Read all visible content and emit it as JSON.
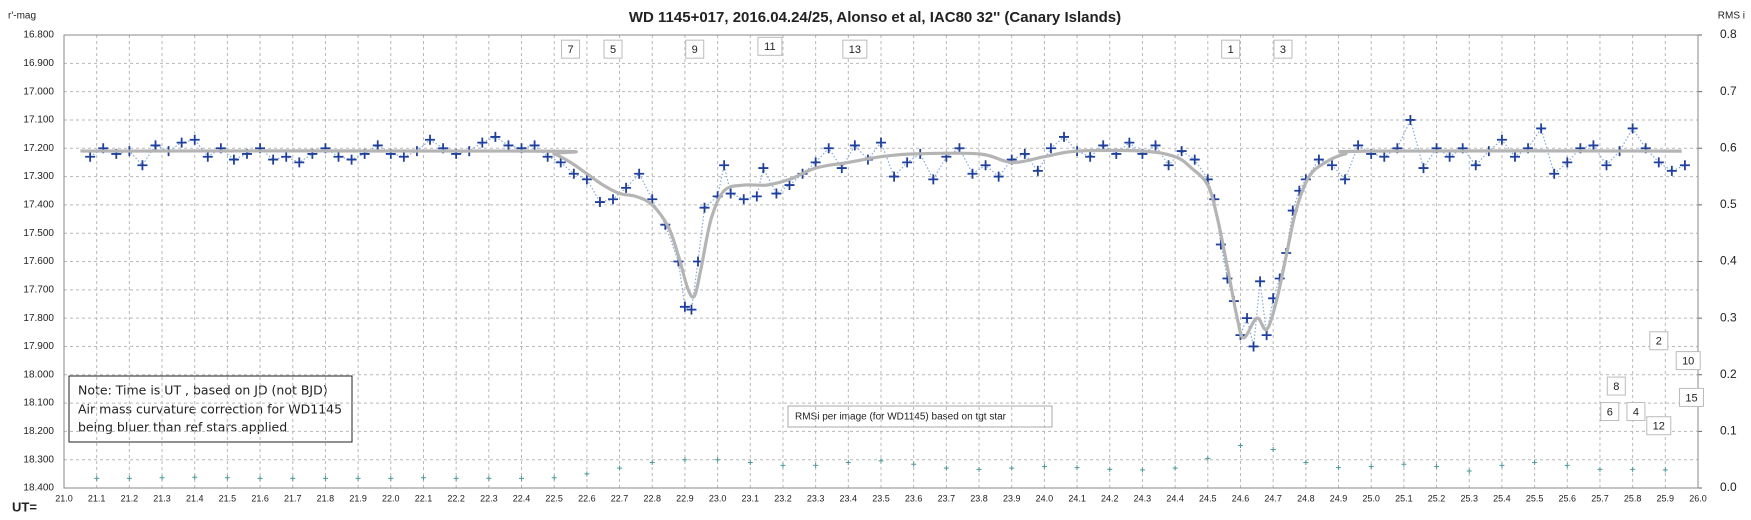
{
  "chart_data": {
    "type": "line",
    "title": "WD 1145+017,  2016.04.24/25,  Alonso  et al,  IAC80  32'' (Canary Islands)",
    "y_label": "r'-mag",
    "y2_label": "RMS i",
    "x_label": "UT=",
    "xlim": [
      21.0,
      26.0
    ],
    "xticks": [
      {
        "value": 21,
        "label": "21.0"
      },
      21.1,
      21.2,
      21.3,
      21.4,
      21.5,
      21.6,
      21.7,
      21.8,
      21.9,
      {
        "value": 22,
        "label": "22.0"
      },
      22.1,
      22.2,
      22.3,
      22.4,
      22.5,
      22.6,
      22.7,
      22.8,
      22.9,
      {
        "value": 23,
        "label": "23.0"
      },
      23.1,
      23.2,
      23.3,
      23.4,
      23.5,
      23.6,
      23.7,
      23.8,
      23.9,
      {
        "value": 24,
        "label": "24.0"
      },
      24.1,
      24.2,
      24.3,
      24.4,
      24.5,
      24.6,
      24.7,
      24.8,
      24.9,
      {
        "value": 25,
        "label": "25.0"
      },
      25.1,
      25.2,
      25.3,
      25.4,
      25.5,
      25.6,
      25.7,
      25.8,
      25.9,
      {
        "value": 26,
        "label": "26.0"
      }
    ],
    "ylim": [
      16.8,
      18.4
    ],
    "y_inverted": true,
    "yticks": [
      {
        "value": 16.8,
        "label": "16.800"
      },
      {
        "value": 16.9,
        "label": "16.900"
      },
      {
        "value": 17.0,
        "label": "17.000"
      },
      {
        "value": 17.1,
        "label": "17.100"
      },
      {
        "value": 17.2,
        "label": "17.200"
      },
      {
        "value": 17.3,
        "label": "17.300"
      },
      {
        "value": 17.4,
        "label": "17.400"
      },
      {
        "value": 17.5,
        "label": "17.500"
      },
      {
        "value": 17.6,
        "label": "17.600"
      },
      {
        "value": 17.7,
        "label": "17.700"
      },
      {
        "value": 17.8,
        "label": "17.800"
      },
      {
        "value": 17.9,
        "label": "17.900"
      },
      {
        "value": 18.0,
        "label": "18.000"
      },
      {
        "value": 18.1,
        "label": "18.100"
      },
      {
        "value": 18.2,
        "label": "18.200"
      },
      {
        "value": 18.3,
        "label": "18.300"
      },
      {
        "value": 18.4,
        "label": "18.400"
      }
    ],
    "y2lim": [
      0,
      0.8
    ],
    "y2ticks": [
      {
        "value": 0,
        "label": "0.0"
      },
      0.1,
      0.2,
      0.3,
      0.4,
      0.5,
      0.6,
      0.7,
      0.8
    ],
    "grid": true,
    "series": [
      {
        "color": "#1f3f9c",
        "marker": "plus",
        "line": "dotted",
        "line_color": "#86a9d8",
        "x": [
          21.08,
          21.12,
          21.16,
          21.2,
          21.24,
          21.28,
          21.32,
          21.36,
          21.4,
          21.44,
          21.48,
          21.52,
          21.56,
          21.6,
          21.64,
          21.68,
          21.72,
          21.76,
          21.8,
          21.84,
          21.88,
          21.92,
          21.96,
          22,
          22.04,
          22.08,
          22.12,
          22.16,
          22.2,
          22.24,
          22.28,
          22.32,
          22.36,
          22.4,
          22.44,
          22.48,
          22.52,
          22.56,
          22.6,
          22.64,
          22.68,
          22.72,
          22.76,
          22.8,
          22.84,
          22.88,
          22.9,
          22.92,
          22.94,
          22.96,
          23,
          23.02,
          23.04,
          23.08,
          23.12,
          23.14,
          23.18,
          23.22,
          23.26,
          23.3,
          23.34,
          23.38,
          23.42,
          23.46,
          23.5,
          23.54,
          23.58,
          23.62,
          23.66,
          23.7,
          23.74,
          23.78,
          23.82,
          23.86,
          23.9,
          23.94,
          23.98,
          24.02,
          24.06,
          24.1,
          24.14,
          24.18,
          24.22,
          24.26,
          24.3,
          24.34,
          24.38,
          24.42,
          24.46,
          24.5,
          24.52,
          24.54,
          24.56,
          24.58,
          24.6,
          24.62,
          24.64,
          24.66,
          24.68,
          24.7,
          24.72,
          24.74,
          24.76,
          24.78,
          24.8,
          24.84,
          24.88,
          24.92,
          24.96,
          25,
          25.04,
          25.08,
          25.12,
          25.16,
          25.2,
          25.24,
          25.28,
          25.32,
          25.36,
          25.4,
          25.44,
          25.48,
          25.52,
          25.56,
          25.6,
          25.64,
          25.68,
          25.72,
          25.76,
          25.8,
          25.84,
          25.88,
          25.92,
          25.96
        ],
        "values": [
          17.23,
          17.2,
          17.22,
          17.21,
          17.26,
          17.19,
          17.21,
          17.18,
          17.17,
          17.23,
          17.2,
          17.24,
          17.22,
          17.2,
          17.24,
          17.23,
          17.25,
          17.22,
          17.2,
          17.23,
          17.24,
          17.22,
          17.19,
          17.22,
          17.23,
          17.21,
          17.17,
          17.2,
          17.22,
          17.21,
          17.18,
          17.16,
          17.19,
          17.2,
          17.19,
          17.23,
          17.25,
          17.29,
          17.31,
          17.39,
          17.38,
          17.34,
          17.29,
          17.38,
          17.47,
          17.6,
          17.76,
          17.77,
          17.6,
          17.41,
          17.37,
          17.26,
          17.36,
          17.38,
          17.37,
          17.27,
          17.36,
          17.33,
          17.29,
          17.25,
          17.2,
          17.27,
          17.19,
          17.24,
          17.18,
          17.3,
          17.25,
          17.22,
          17.31,
          17.23,
          17.2,
          17.29,
          17.26,
          17.3,
          17.24,
          17.22,
          17.28,
          17.2,
          17.16,
          17.21,
          17.23,
          17.19,
          17.22,
          17.18,
          17.22,
          17.19,
          17.26,
          17.21,
          17.24,
          17.31,
          17.38,
          17.54,
          17.66,
          17.74,
          17.86,
          17.8,
          17.9,
          17.67,
          17.86,
          17.73,
          17.66,
          17.57,
          17.42,
          17.35,
          17.31,
          17.24,
          17.26,
          17.31,
          17.19,
          17.22,
          17.23,
          17.2,
          17.1,
          17.27,
          17.2,
          17.23,
          17.2,
          17.26,
          17.21,
          17.17,
          17.23,
          17.2,
          17.13,
          17.29,
          17.25,
          17.2,
          17.19,
          17.26,
          17.21,
          17.13,
          17.2,
          17.25,
          17.28,
          17.26
        ]
      },
      {
        "color": "#b4b4b4",
        "line": "smooth",
        "x": [
          21.05,
          22.45,
          22.5,
          22.55,
          22.6,
          22.65,
          22.7,
          22.75,
          22.8,
          22.85,
          22.88,
          22.91,
          22.93,
          22.95,
          22.98,
          23.02,
          23.08,
          23.15,
          23.22,
          23.3,
          23.4,
          23.5,
          23.6,
          23.8,
          23.9,
          24.0,
          24.1,
          24.3,
          24.4,
          24.45,
          24.5,
          24.53,
          24.56,
          24.59,
          24.61,
          24.65,
          24.68,
          24.71,
          24.74,
          24.77,
          24.81,
          24.86,
          24.92,
          25.0,
          25.95
        ],
        "values": [
          17.21,
          17.21,
          17.22,
          17.25,
          17.29,
          17.33,
          17.36,
          17.37,
          17.4,
          17.48,
          17.58,
          17.7,
          17.72,
          17.62,
          17.45,
          17.35,
          17.33,
          17.33,
          17.31,
          17.27,
          17.25,
          17.23,
          17.22,
          17.22,
          17.25,
          17.23,
          17.21,
          17.21,
          17.23,
          17.27,
          17.33,
          17.45,
          17.62,
          17.8,
          17.87,
          17.8,
          17.84,
          17.74,
          17.58,
          17.42,
          17.3,
          17.25,
          17.22,
          17.21,
          17.21
        ]
      },
      {
        "name": "RMSi per image (for WD1145) based on tgt star",
        "axis": "y2",
        "color": "#4f9a9c",
        "marker": "small-plus",
        "x": [
          21.1,
          21.2,
          21.3,
          21.4,
          21.5,
          21.6,
          21.7,
          21.8,
          21.9,
          22.0,
          22.1,
          22.2,
          22.3,
          22.4,
          22.5,
          22.6,
          22.7,
          22.8,
          22.9,
          23.0,
          23.1,
          23.2,
          23.3,
          23.4,
          23.5,
          23.6,
          23.7,
          23.8,
          23.9,
          24.0,
          24.1,
          24.2,
          24.3,
          24.4,
          24.5,
          24.6,
          24.7,
          24.8,
          24.9,
          25.0,
          25.1,
          25.2,
          25.3,
          25.4,
          25.5,
          25.6,
          25.7,
          25.8,
          25.9
        ],
        "values": [
          0.017,
          0.017,
          0.018,
          0.019,
          0.018,
          0.017,
          0.017,
          0.017,
          0.017,
          0.017,
          0.018,
          0.017,
          0.017,
          0.017,
          0.018,
          0.025,
          0.035,
          0.045,
          0.05,
          0.05,
          0.045,
          0.04,
          0.04,
          0.045,
          0.048,
          0.042,
          0.035,
          0.033,
          0.035,
          0.038,
          0.036,
          0.033,
          0.032,
          0.035,
          0.052,
          0.075,
          0.068,
          0.045,
          0.036,
          0.038,
          0.042,
          0.038,
          0.03,
          0.04,
          0.045,
          0.04,
          0.033,
          0.033,
          0.032
        ]
      }
    ],
    "annotations": [
      {
        "text": "7",
        "x": 22.55,
        "y": 16.85
      },
      {
        "text": "5",
        "x": 22.68,
        "y": 16.85
      },
      {
        "text": "9",
        "x": 22.93,
        "y": 16.85
      },
      {
        "text": "11",
        "x": 23.16,
        "y": 16.84
      },
      {
        "text": "13",
        "x": 23.42,
        "y": 16.85
      },
      {
        "text": "1",
        "x": 24.57,
        "y": 16.85
      },
      {
        "text": "3",
        "x": 24.73,
        "y": 16.85
      },
      {
        "text": "2",
        "x": 25.88,
        "y": 17.88
      },
      {
        "text": "10",
        "x": 25.97,
        "y": 17.95
      },
      {
        "text": "8",
        "x": 25.75,
        "y": 18.04
      },
      {
        "text": "15",
        "x": 25.98,
        "y": 18.08
      },
      {
        "text": "6",
        "x": 25.73,
        "y": 18.13
      },
      {
        "text": "4",
        "x": 25.81,
        "y": 18.13
      },
      {
        "text": "12",
        "x": 25.88,
        "y": 18.18
      }
    ],
    "note": [
      "Note: Time is UT , based on JD (not BJD)",
      "Air mass  curvature correction for WD1145",
      "being bluer than ref stars applied"
    ]
  }
}
